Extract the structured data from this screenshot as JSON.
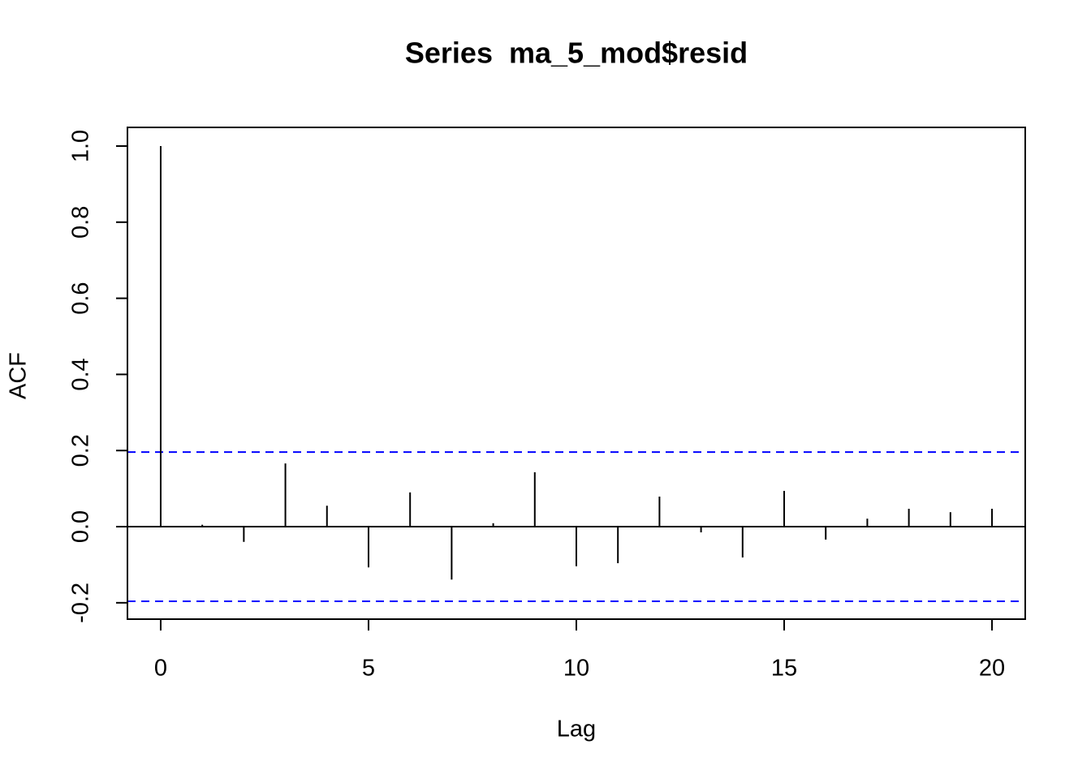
{
  "chart_data": {
    "type": "acf",
    "title": "Series  ma_5_mod$resid",
    "x_label": "Lag",
    "y_label": "ACF",
    "x": [
      0,
      1,
      2,
      3,
      4,
      5,
      6,
      7,
      8,
      9,
      10,
      11,
      12,
      13,
      14,
      15,
      16,
      17,
      18,
      19,
      20
    ],
    "values": [
      1.0,
      0.005,
      -0.04,
      0.166,
      0.055,
      -0.107,
      0.09,
      -0.139,
      0.009,
      0.143,
      -0.104,
      -0.096,
      0.079,
      -0.015,
      -0.081,
      0.094,
      -0.034,
      0.021,
      0.047,
      0.038,
      0.047
    ],
    "color": "#000000",
    "confidence_bounds": [
      0.196,
      -0.196
    ],
    "confidence_color": "#0000ff",
    "xlim": [
      -0.8,
      20.8
    ],
    "ylim": [
      -0.243,
      1.049
    ],
    "xticks": [
      0,
      5,
      10,
      15,
      20
    ],
    "yticks": [
      -0.2,
      {
        "value": 0,
        "label": "0.0"
      },
      0.2,
      0.4,
      0.6,
      0.8,
      {
        "value": 1,
        "label": "1.0"
      }
    ]
  }
}
